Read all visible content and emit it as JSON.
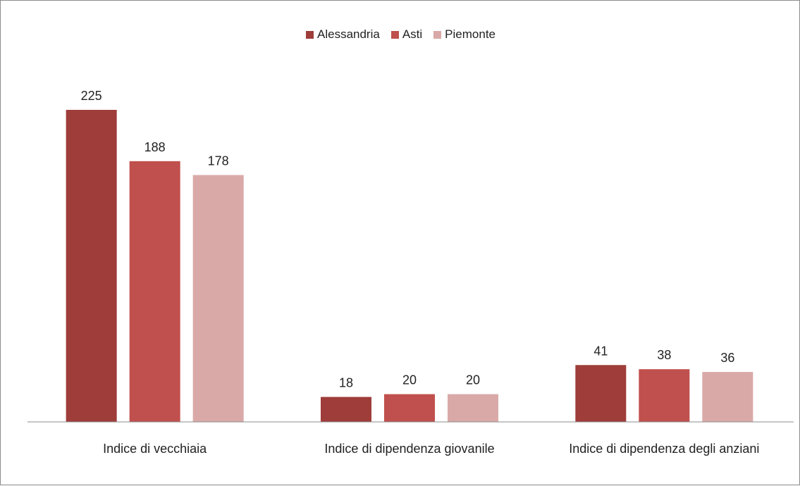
{
  "chart_data": {
    "type": "bar",
    "categories": [
      "Indice di vecchiaia",
      "Indice di dipendenza giovanile",
      "Indice di dipendenza degli anziani"
    ],
    "series": [
      {
        "name": "Alessandria",
        "color": "#9e3d3a",
        "values": [
          225,
          18,
          41
        ]
      },
      {
        "name": "Asti",
        "color": "#c0504d",
        "values": [
          188,
          20,
          38
        ]
      },
      {
        "name": "Piemonte",
        "color": "#d9a9a8",
        "values": [
          178,
          20,
          36
        ]
      }
    ],
    "legend": "top"
  }
}
